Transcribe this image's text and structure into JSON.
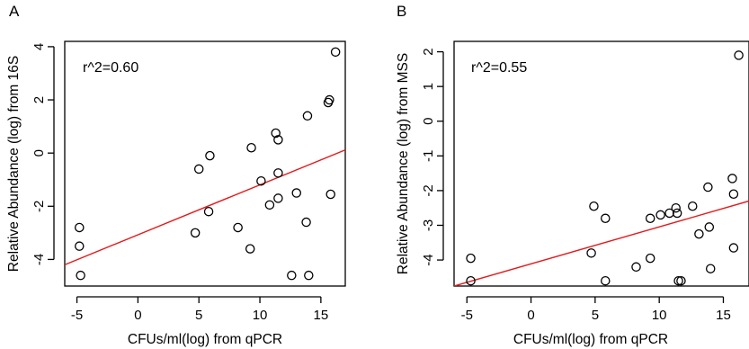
{
  "chart_data": [
    {
      "type": "scatter",
      "panel_label": "A",
      "annotation": "r^2=0.60",
      "xlabel": "CFUs/ml(log) from qPCR",
      "ylabel": "Relative Abundance (log) from 16S",
      "xlim": [
        -6,
        17
      ],
      "ylim": [
        -5,
        4.2
      ],
      "xticks": [
        -5,
        0,
        5,
        10,
        15
      ],
      "yticks": [
        -4,
        -2,
        0,
        2,
        4
      ],
      "points": [
        {
          "x": -4.8,
          "y": -2.8
        },
        {
          "x": -4.8,
          "y": -3.5
        },
        {
          "x": -4.7,
          "y": -4.6
        },
        {
          "x": 4.7,
          "y": -3.0
        },
        {
          "x": 5.0,
          "y": -0.6
        },
        {
          "x": 5.8,
          "y": -2.2
        },
        {
          "x": 5.9,
          "y": -0.1
        },
        {
          "x": 8.2,
          "y": -2.8
        },
        {
          "x": 9.2,
          "y": -3.6
        },
        {
          "x": 9.3,
          "y": 0.2
        },
        {
          "x": 10.1,
          "y": -1.05
        },
        {
          "x": 10.8,
          "y": -1.95
        },
        {
          "x": 11.3,
          "y": 0.75
        },
        {
          "x": 11.5,
          "y": 0.5
        },
        {
          "x": 11.5,
          "y": -0.75
        },
        {
          "x": 11.5,
          "y": -1.7
        },
        {
          "x": 12.6,
          "y": -4.6
        },
        {
          "x": 13.0,
          "y": -1.5
        },
        {
          "x": 13.8,
          "y": -2.6
        },
        {
          "x": 13.9,
          "y": 1.4
        },
        {
          "x": 14.0,
          "y": -4.6
        },
        {
          "x": 15.6,
          "y": 1.9
        },
        {
          "x": 15.7,
          "y": 2.0
        },
        {
          "x": 15.8,
          "y": -1.55
        },
        {
          "x": 16.2,
          "y": 3.8
        }
      ],
      "fit_line": {
        "color": "#e41a1c",
        "x": [
          -6,
          17
        ],
        "y": [
          -4.2,
          0.12
        ]
      }
    },
    {
      "type": "scatter",
      "panel_label": "B",
      "annotation": "r^2=0.55",
      "xlabel": "CFUs/ml(log) from qPCR",
      "ylabel": "Relative Abundance (log) from MSS",
      "xlim": [
        -6,
        17
      ],
      "ylim": [
        -4.75,
        2.3
      ],
      "xticks": [
        -5,
        0,
        5,
        10,
        15
      ],
      "yticks": [
        -4,
        -3,
        -2,
        -1,
        0,
        1,
        2
      ],
      "points": [
        {
          "x": -4.7,
          "y": -3.95
        },
        {
          "x": -4.7,
          "y": -4.6
        },
        {
          "x": 4.7,
          "y": -3.8
        },
        {
          "x": 4.9,
          "y": -2.45
        },
        {
          "x": 5.8,
          "y": -2.8
        },
        {
          "x": 5.8,
          "y": -4.6
        },
        {
          "x": 8.2,
          "y": -4.2
        },
        {
          "x": 9.3,
          "y": -2.8
        },
        {
          "x": 9.3,
          "y": -3.95
        },
        {
          "x": 10.1,
          "y": -2.7
        },
        {
          "x": 10.8,
          "y": -2.65
        },
        {
          "x": 11.3,
          "y": -2.5
        },
        {
          "x": 11.4,
          "y": -2.65
        },
        {
          "x": 11.5,
          "y": -4.6
        },
        {
          "x": 11.7,
          "y": -4.6
        },
        {
          "x": 12.6,
          "y": -2.45
        },
        {
          "x": 13.1,
          "y": -3.25
        },
        {
          "x": 13.8,
          "y": -1.9
        },
        {
          "x": 13.9,
          "y": -3.05
        },
        {
          "x": 14.0,
          "y": -4.25
        },
        {
          "x": 15.7,
          "y": -1.65
        },
        {
          "x": 15.8,
          "y": -2.1
        },
        {
          "x": 15.8,
          "y": -3.65
        },
        {
          "x": 16.2,
          "y": 1.9
        }
      ],
      "fit_line": {
        "color": "#e41a1c",
        "x": [
          -6,
          17
        ],
        "y": [
          -4.75,
          -2.3
        ]
      }
    }
  ]
}
